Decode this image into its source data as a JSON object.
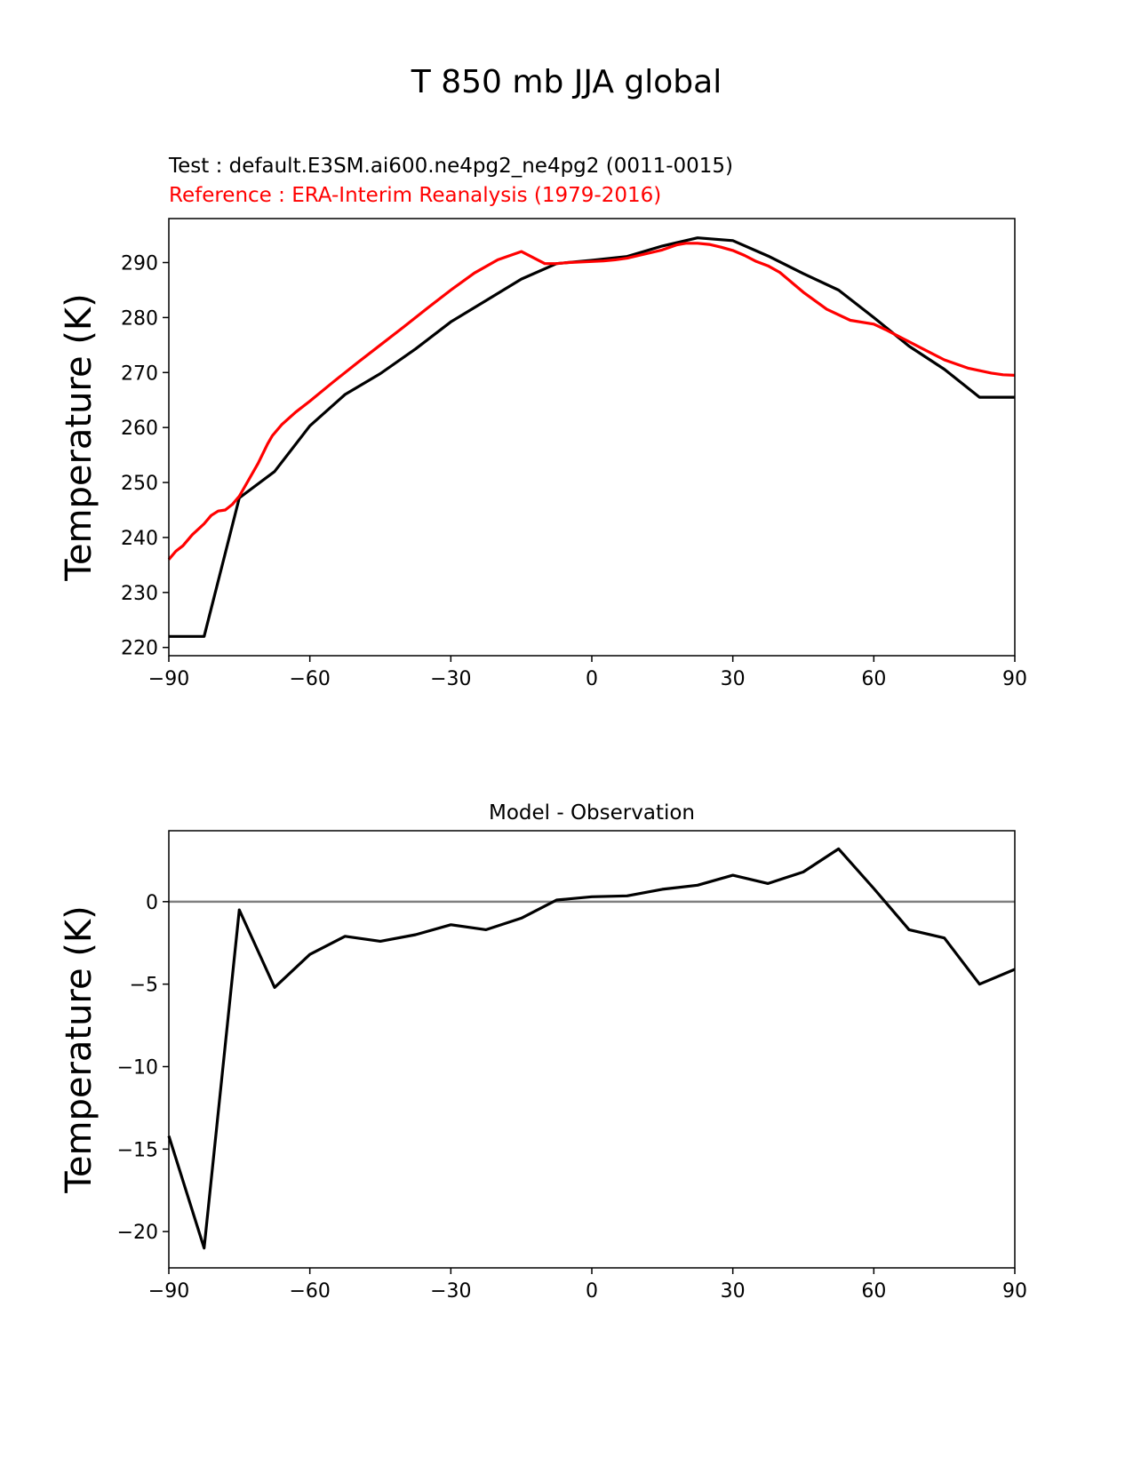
{
  "figure_title": "T 850 mb JJA global",
  "colors": {
    "test": "#000000",
    "reference": "#ff0000",
    "zero_line": "#808080"
  },
  "chart_data": [
    {
      "type": "line",
      "name": "top",
      "legend": {
        "test": "Test : default.E3SM.ai600.ne4pg2_ne4pg2 (0011-0015)",
        "reference": "Reference : ERA-Interim Reanalysis (1979-2016)"
      },
      "xlabel": "",
      "ylabel": "Temperature (K)",
      "xlim": [
        -90,
        90
      ],
      "ylim": [
        218.5,
        298
      ],
      "xticks": [
        -90,
        -60,
        -30,
        0,
        30,
        60,
        90
      ],
      "xtick_labels": [
        "−90",
        "−60",
        "−30",
        "0",
        "30",
        "60",
        "90"
      ],
      "yticks": [
        220,
        230,
        240,
        250,
        260,
        270,
        280,
        290
      ],
      "ytick_labels": [
        "220",
        "230",
        "240",
        "250",
        "260",
        "270",
        "280",
        "290"
      ],
      "series": [
        {
          "name": "test",
          "x": [
            -90,
            -82.5,
            -75,
            -67.5,
            -60,
            -52.5,
            -45,
            -37.5,
            -30,
            -22.5,
            -15,
            -7.5,
            0,
            7.5,
            15,
            22.5,
            30,
            37.5,
            45,
            52.5,
            60,
            67.5,
            75,
            82.5,
            90
          ],
          "y": [
            222,
            222,
            247.2,
            252,
            260.3,
            266,
            269.8,
            274.3,
            279.2,
            283.1,
            287,
            289.8,
            290.4,
            291.1,
            293,
            294.5,
            294,
            291.2,
            288,
            285,
            280,
            274.8,
            270.6,
            265.5,
            265.5
          ]
        },
        {
          "name": "reference",
          "x": [
            -90,
            -88.5,
            -87,
            -85,
            -84,
            -82.5,
            -81,
            -79.5,
            -78,
            -76.5,
            -75,
            -73,
            -71,
            -69,
            -68,
            -66,
            -63,
            -60,
            -55,
            -50,
            -45,
            -40,
            -35,
            -30,
            -25,
            -20,
            -15,
            -10,
            -7.5,
            -5,
            0,
            2.5,
            5,
            7.5,
            10,
            15,
            18,
            20,
            22.5,
            25,
            27.5,
            30,
            32.5,
            35,
            37.5,
            40,
            45,
            50,
            55,
            60,
            62.5,
            65,
            70,
            75,
            80,
            85,
            87.5,
            90
          ],
          "y": [
            236,
            237.5,
            238.5,
            240.5,
            241.3,
            242.5,
            244,
            244.8,
            245,
            246,
            247.5,
            250.5,
            253.5,
            257,
            258.5,
            260.5,
            262.8,
            264.8,
            268.3,
            271.7,
            275,
            278.3,
            281.7,
            285,
            288.1,
            290.5,
            292,
            289.8,
            289.8,
            290,
            290.2,
            290.3,
            290.5,
            290.8,
            291.3,
            292.3,
            293.2,
            293.5,
            293.5,
            293.3,
            292.8,
            292.2,
            291.3,
            290.2,
            289.4,
            288.2,
            284.6,
            281.5,
            279.5,
            278.8,
            277.8,
            276.7,
            274.5,
            272.3,
            270.8,
            269.9,
            269.6,
            269.5
          ]
        }
      ]
    },
    {
      "type": "line",
      "name": "bottom",
      "title": "Model - Observation",
      "xlabel": "",
      "ylabel": "Temperature (K)",
      "xlim": [
        -90,
        90
      ],
      "ylim": [
        -22.2,
        4.3
      ],
      "xticks": [
        -90,
        -60,
        -30,
        0,
        30,
        60,
        90
      ],
      "xtick_labels": [
        "−90",
        "−60",
        "−30",
        "0",
        "30",
        "60",
        "90"
      ],
      "yticks": [
        -20,
        -15,
        -10,
        -5,
        0
      ],
      "ytick_labels": [
        "−20",
        "−15",
        "−10",
        "−5",
        "0"
      ],
      "zero_line": true,
      "series": [
        {
          "name": "difference",
          "x": [
            -90,
            -82.5,
            -75,
            -67.5,
            -60,
            -52.5,
            -45,
            -37.5,
            -30,
            -22.5,
            -15,
            -7.5,
            0,
            7.5,
            15,
            22.5,
            30,
            37.5,
            45,
            52.5,
            60,
            67.5,
            75,
            82.5,
            90
          ],
          "y": [
            -14.2,
            -21,
            -0.5,
            -5.2,
            -3.2,
            -2.1,
            -2.4,
            -2.0,
            -1.4,
            -1.7,
            -1.0,
            0.1,
            0.3,
            0.35,
            0.75,
            1.0,
            1.6,
            1.1,
            1.8,
            3.2,
            0.8,
            -1.7,
            -2.2,
            -5.0,
            -4.1
          ]
        }
      ]
    }
  ]
}
